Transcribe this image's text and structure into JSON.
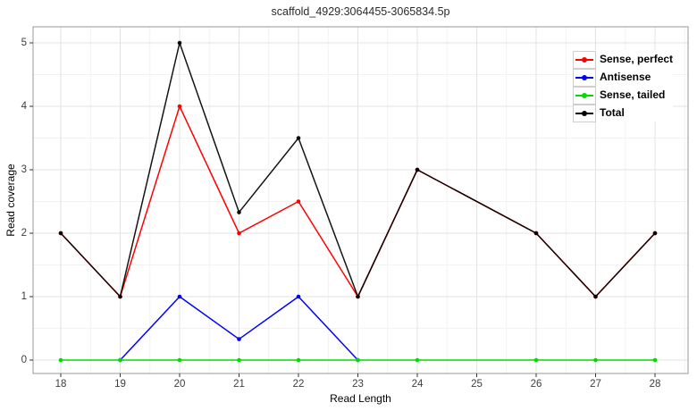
{
  "chart_data": {
    "type": "line",
    "title": "scaffold_4929:3064455-3065834.5p",
    "xlabel": "Read Length",
    "ylabel": "Read coverage",
    "xlim": [
      18,
      28
    ],
    "ylim": [
      0,
      5
    ],
    "x_ticks": [
      18,
      19,
      20,
      21,
      22,
      23,
      24,
      25,
      26,
      27,
      28
    ],
    "y_ticks": [
      0,
      1,
      2,
      3,
      4,
      5
    ],
    "grid": "major and minor gridlines, light gray on white panel",
    "legend_position": "inside top-right",
    "series": [
      {
        "name": "Sense, perfect",
        "color": "#ff0000",
        "points": [
          [
            18,
            2
          ],
          [
            19,
            1
          ],
          [
            20,
            4
          ],
          [
            21,
            2
          ],
          [
            22,
            2.5
          ],
          [
            23,
            1
          ],
          [
            24,
            3
          ],
          [
            26,
            2
          ],
          [
            27,
            1
          ],
          [
            28,
            2
          ]
        ]
      },
      {
        "name": "Antisense",
        "color": "#0000ff",
        "points": [
          [
            19,
            0
          ],
          [
            20,
            1
          ],
          [
            21,
            0.33
          ],
          [
            22,
            1
          ],
          [
            23,
            0
          ]
        ]
      },
      {
        "name": "Sense, tailed",
        "color": "#00dc00",
        "points": [
          [
            18,
            0
          ],
          [
            19,
            0
          ],
          [
            20,
            0
          ],
          [
            21,
            0
          ],
          [
            22,
            0
          ],
          [
            23,
            0
          ],
          [
            24,
            0
          ],
          [
            26,
            0
          ],
          [
            27,
            0
          ],
          [
            28,
            0
          ]
        ]
      },
      {
        "name": "Total",
        "color": "#000000",
        "opacity": 0.92,
        "points": [
          [
            18,
            2
          ],
          [
            19,
            1
          ],
          [
            20,
            5
          ],
          [
            21,
            2.33
          ],
          [
            22,
            3.5
          ],
          [
            23,
            1
          ],
          [
            24,
            3
          ],
          [
            26,
            2
          ],
          [
            27,
            1
          ],
          [
            28,
            2
          ]
        ]
      }
    ]
  }
}
